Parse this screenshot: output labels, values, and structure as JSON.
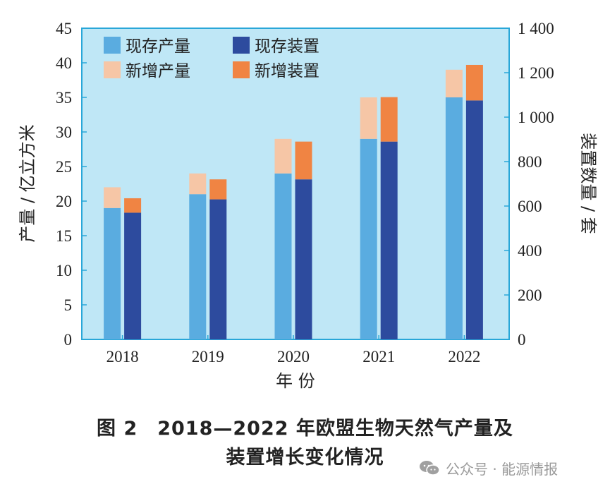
{
  "chart_data": {
    "type": "bar",
    "categories": [
      "2018",
      "2019",
      "2020",
      "2021",
      "2022"
    ],
    "left_axis": {
      "label": "产量 / 亿立方米",
      "range": [
        0,
        45
      ],
      "ticks": [
        "0",
        "5",
        "10",
        "15",
        "20",
        "25",
        "30",
        "35",
        "40",
        "45"
      ],
      "tick_values": [
        0,
        5,
        10,
        15,
        20,
        25,
        30,
        35,
        40,
        45
      ]
    },
    "right_axis": {
      "label": "装置数量 / 套",
      "range": [
        0,
        1400
      ],
      "ticks": [
        "0",
        "200",
        "400",
        "600",
        "800",
        "1 000",
        "1 200",
        "1 400"
      ],
      "tick_values": [
        0,
        200,
        400,
        600,
        800,
        1000,
        1200,
        1400
      ]
    },
    "xlabel": "年 份",
    "series": [
      {
        "name": "现存产量",
        "axis": "left",
        "stack": "production",
        "color": "#5aace0",
        "values": [
          19,
          21,
          24,
          29,
          35
        ]
      },
      {
        "name": "新增产量",
        "axis": "left",
        "stack": "production",
        "color": "#f6c6a6",
        "values": [
          3,
          3,
          5,
          6,
          4
        ]
      },
      {
        "name": "现存装置",
        "axis": "right",
        "stack": "plants",
        "color": "#2d4b9e",
        "values": [
          570,
          630,
          720,
          890,
          1075
        ]
      },
      {
        "name": "新增装置",
        "axis": "right",
        "stack": "plants",
        "color": "#f08443",
        "values": [
          65,
          90,
          170,
          200,
          160
        ]
      }
    ],
    "legend": "top-left",
    "background": "#bfe7f6"
  },
  "caption": {
    "line1": "图 2　2018—2022 年欧盟生物天然气产量及",
    "line2": "装置增长变化情况"
  },
  "watermark": {
    "text": "公众号 · 能源情报",
    "icon": "wechat-icon"
  }
}
